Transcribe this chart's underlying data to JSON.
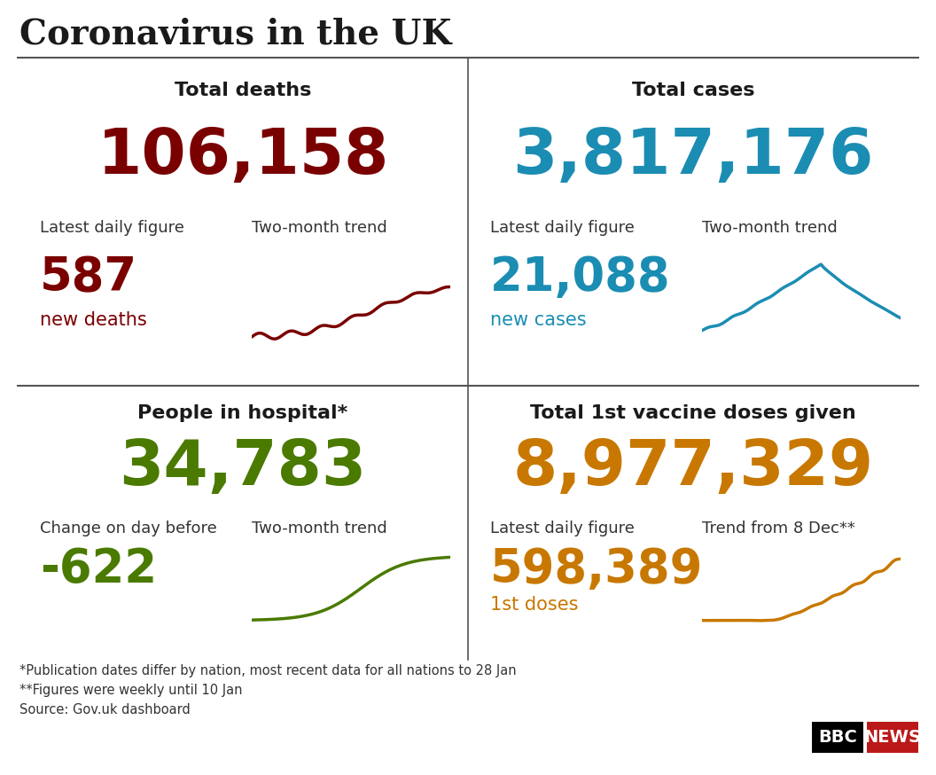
{
  "title": "Coronavirus in the UK",
  "background_color": "#ffffff",
  "title_color": "#1a1a1a",
  "divider_color": "#555555",
  "panel_titles": [
    "Total deaths",
    "Total cases",
    "People in hospital*",
    "Total 1st vaccine doses given"
  ],
  "panel_title_color": "#1a1a1a",
  "total_values": [
    "106,158",
    "3,817,176",
    "34,783",
    "8,977,329"
  ],
  "total_colors": [
    "#7a0000",
    "#1B8DB3",
    "#4A7A00",
    "#C87800"
  ],
  "daily_values": [
    "587",
    "21,088",
    "-622",
    "598,389"
  ],
  "daily_colors": [
    "#7a0000",
    "#1B8DB3",
    "#4A7A00",
    "#C87800"
  ],
  "daily_sublabels": [
    "new deaths",
    "new cases",
    "",
    "1st doses"
  ],
  "daily_sublabel_colors": [
    "#7a0000",
    "#1B8DB3",
    "#4A7A00",
    "#C87800"
  ],
  "sub_label1_list": [
    "Latest daily figure",
    "Latest daily figure",
    "Change on day before",
    "Latest daily figure"
  ],
  "sub_label2_list": [
    "Two-month trend",
    "Two-month trend",
    "Two-month trend",
    "Trend from 8 Dec**"
  ],
  "footnotes": [
    "*Publication dates differ by nation, most recent data for all nations to 28 Jan",
    "**Figures were weekly until 10 Jan",
    "Source: Gov.uk dashboard"
  ],
  "bbc_news_black": "#000000",
  "bbc_news_red": "#BB1919",
  "title_font_size": 28,
  "panel_title_font_size": 16,
  "total_font_size": 52,
  "daily_font_size": 38,
  "sub_label_font_size": 13,
  "daily_sub_font_size": 15,
  "footnote_font_size": 10.5
}
